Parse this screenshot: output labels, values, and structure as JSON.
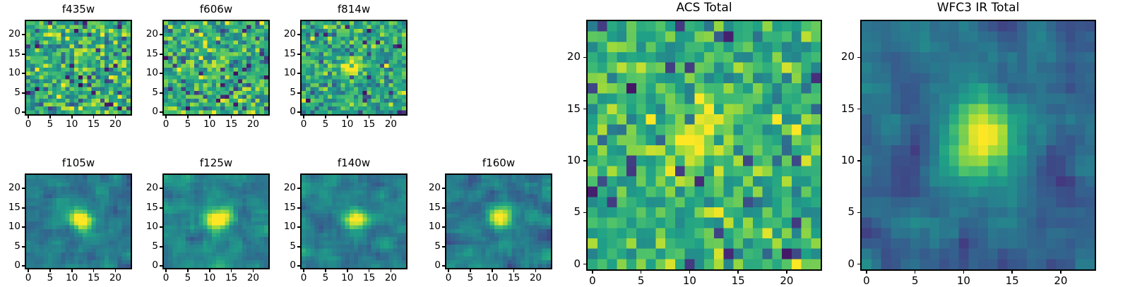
{
  "figure": {
    "background": "#ffffff",
    "description": "Grid of astronomical image cutout heatmaps in viridis colormap"
  },
  "colormap": {
    "name": "viridis",
    "stops": [
      "#440154",
      "#46327e",
      "#365c8d",
      "#277f8e",
      "#1fa187",
      "#4ac16d",
      "#a0da39",
      "#fde725"
    ]
  },
  "chart_data": [
    {
      "type": "heatmap",
      "title": "f435w",
      "grid": {
        "nx": 24,
        "ny": 24
      },
      "xticks": [
        0,
        5,
        10,
        15,
        20
      ],
      "yticks": [
        0,
        5,
        10,
        15,
        20
      ],
      "xlim": [
        -0.5,
        23.5
      ],
      "ylim": [
        -0.5,
        23.5
      ],
      "size": "small",
      "appearance": {
        "noise_mean": 0.64,
        "noise_std": 0.16,
        "dark_fraction": 0.06,
        "smooth": 0,
        "source": {
          "x": 12,
          "y": 12,
          "amplitude": 0.0,
          "sigma": 1.5
        },
        "seed": 7
      }
    },
    {
      "type": "heatmap",
      "title": "f606w",
      "grid": {
        "nx": 24,
        "ny": 24
      },
      "xticks": [
        0,
        5,
        10,
        15,
        20
      ],
      "yticks": [
        0,
        5,
        10,
        15,
        20
      ],
      "xlim": [
        -0.5,
        23.5
      ],
      "ylim": [
        -0.5,
        23.5
      ],
      "size": "small",
      "appearance": {
        "noise_mean": 0.64,
        "noise_std": 0.16,
        "dark_fraction": 0.06,
        "smooth": 0,
        "source": {
          "x": 12,
          "y": 12,
          "amplitude": 0.12,
          "sigma": 1.5
        },
        "seed": 23
      }
    },
    {
      "type": "heatmap",
      "title": "f814w",
      "grid": {
        "nx": 24,
        "ny": 24
      },
      "xticks": [
        0,
        5,
        10,
        15,
        20
      ],
      "yticks": [
        0,
        5,
        10,
        15,
        20
      ],
      "xlim": [
        -0.5,
        23.5
      ],
      "ylim": [
        -0.5,
        23.5
      ],
      "size": "small",
      "appearance": {
        "noise_mean": 0.6,
        "noise_std": 0.15,
        "dark_fraction": 0.05,
        "smooth": 0,
        "source": {
          "x": 11,
          "y": 12,
          "amplitude": 0.55,
          "sigma": 1.5
        },
        "seed": 41
      }
    },
    {
      "type": "heatmap",
      "title": "f105w",
      "grid": {
        "nx": 24,
        "ny": 24
      },
      "xticks": [
        0,
        5,
        10,
        15,
        20
      ],
      "yticks": [
        0,
        5,
        10,
        15,
        20
      ],
      "xlim": [
        -0.5,
        23.5
      ],
      "ylim": [
        -0.5,
        23.5
      ],
      "size": "small",
      "appearance": {
        "noise_mean": 0.42,
        "noise_std": 0.16,
        "dark_fraction": 0.05,
        "smooth": 1,
        "source": {
          "x": 12,
          "y": 12,
          "amplitude": 0.7,
          "sigma": 1.8
        },
        "seed": 55
      }
    },
    {
      "type": "heatmap",
      "title": "f125w",
      "grid": {
        "nx": 24,
        "ny": 24
      },
      "xticks": [
        0,
        5,
        10,
        15,
        20
      ],
      "yticks": [
        0,
        5,
        10,
        15,
        20
      ],
      "xlim": [
        -0.5,
        23.5
      ],
      "ylim": [
        -0.5,
        23.5
      ],
      "size": "small",
      "appearance": {
        "noise_mean": 0.46,
        "noise_std": 0.16,
        "dark_fraction": 0.05,
        "smooth": 1,
        "source": {
          "x": 12,
          "y": 12,
          "amplitude": 0.72,
          "sigma": 1.9
        },
        "seed": 67
      }
    },
    {
      "type": "heatmap",
      "title": "f140w",
      "grid": {
        "nx": 24,
        "ny": 24
      },
      "xticks": [
        0,
        5,
        10,
        15,
        20
      ],
      "yticks": [
        0,
        5,
        10,
        15,
        20
      ],
      "xlim": [
        -0.5,
        23.5
      ],
      "ylim": [
        -0.5,
        23.5
      ],
      "size": "small",
      "appearance": {
        "noise_mean": 0.44,
        "noise_std": 0.16,
        "dark_fraction": 0.05,
        "smooth": 1,
        "source": {
          "x": 12,
          "y": 12,
          "amplitude": 0.68,
          "sigma": 1.8
        },
        "seed": 83
      }
    },
    {
      "type": "heatmap",
      "title": "f160w",
      "grid": {
        "nx": 24,
        "ny": 24
      },
      "xticks": [
        0,
        5,
        10,
        15,
        20
      ],
      "yticks": [
        0,
        5,
        10,
        15,
        20
      ],
      "xlim": [
        -0.5,
        23.5
      ],
      "ylim": [
        -0.5,
        23.5
      ],
      "size": "small",
      "appearance": {
        "noise_mean": 0.42,
        "noise_std": 0.17,
        "dark_fraction": 0.06,
        "smooth": 1,
        "source": {
          "x": 12,
          "y": 12,
          "amplitude": 0.68,
          "sigma": 1.7
        },
        "seed": 91
      }
    },
    {
      "type": "heatmap",
      "title": "ACS Total",
      "grid": {
        "nx": 24,
        "ny": 24
      },
      "xticks": [
        0,
        5,
        10,
        15,
        20
      ],
      "yticks": [
        0,
        5,
        10,
        15,
        20
      ],
      "xlim": [
        -0.5,
        23.5
      ],
      "ylim": [
        -0.5,
        23.5
      ],
      "size": "large",
      "appearance": {
        "noise_mean": 0.64,
        "noise_std": 0.14,
        "dark_fraction": 0.05,
        "smooth": 0,
        "source": {
          "x": 11,
          "y": 12,
          "amplitude": 0.3,
          "sigma": 2.4
        },
        "seed": 105
      }
    },
    {
      "type": "heatmap",
      "title": "WFC3 IR Total",
      "grid": {
        "nx": 24,
        "ny": 24
      },
      "xticks": [
        0,
        5,
        10,
        15,
        20
      ],
      "yticks": [
        0,
        5,
        10,
        15,
        20
      ],
      "xlim": [
        -0.5,
        23.5
      ],
      "ylim": [
        -0.5,
        23.5
      ],
      "size": "large",
      "appearance": {
        "noise_mean": 0.36,
        "noise_std": 0.17,
        "dark_fraction": 0.06,
        "smooth": 1,
        "source": {
          "x": 12,
          "y": 12,
          "amplitude": 0.72,
          "sigma": 2.6
        },
        "seed": 131
      }
    }
  ]
}
